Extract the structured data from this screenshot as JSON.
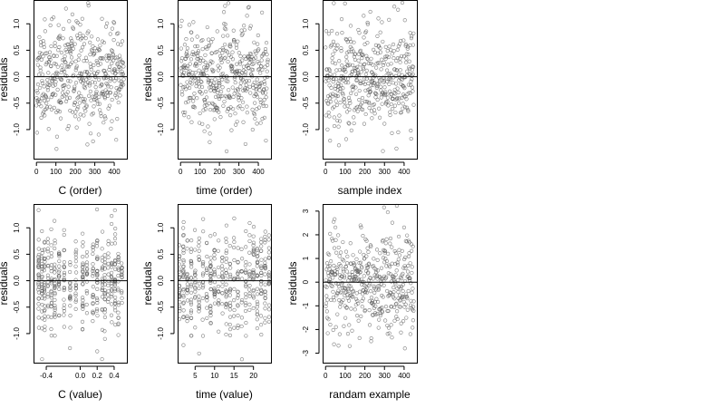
{
  "chart_data": [
    {
      "type": "scatter",
      "xlabel": "C (order)",
      "ylabel": "residuals",
      "xlim": [
        -15,
        465
      ],
      "ylim": [
        -1.55,
        1.45
      ],
      "xticks": [
        0,
        100,
        200,
        300,
        400
      ],
      "xtick_labels": [
        "0",
        "100",
        "200",
        "300",
        "400"
      ],
      "yticks": [
        -1.0,
        -0.5,
        0.0,
        0.5,
        1.0
      ],
      "ytick_labels": [
        "-1.0",
        "-0.5",
        "0.0",
        "0.5",
        "1.0"
      ],
      "hline": 0,
      "pattern": "order",
      "n": 450,
      "sd": 0.48,
      "seed": 11
    },
    {
      "type": "scatter",
      "xlabel": "time (order)",
      "ylabel": "residuals",
      "xlim": [
        -15,
        465
      ],
      "ylim": [
        -1.55,
        1.45
      ],
      "xticks": [
        0,
        100,
        200,
        300,
        400
      ],
      "xtick_labels": [
        "0",
        "100",
        "200",
        "300",
        "400"
      ],
      "yticks": [
        -1.0,
        -0.5,
        0.0,
        0.5,
        1.0
      ],
      "ytick_labels": [
        "-1.0",
        "-0.5",
        "0.0",
        "0.5",
        "1.0"
      ],
      "hline": 0,
      "pattern": "order",
      "n": 450,
      "sd": 0.48,
      "seed": 23
    },
    {
      "type": "scatter",
      "xlabel": "sample index",
      "ylabel": "residuals",
      "xlim": [
        -15,
        465
      ],
      "ylim": [
        -1.55,
        1.45
      ],
      "xticks": [
        0,
        100,
        200,
        300,
        400
      ],
      "xtick_labels": [
        "0",
        "100",
        "200",
        "300",
        "400"
      ],
      "yticks": [
        -1.0,
        -0.5,
        0.0,
        0.5,
        1.0
      ],
      "ytick_labels": [
        "-1.0",
        "-0.5",
        "0.0",
        "0.5",
        "1.0"
      ],
      "hline": 0,
      "pattern": "order",
      "n": 450,
      "sd": 0.48,
      "seed": 37
    },
    {
      "type": "scatter",
      "xlabel": "C (value)",
      "ylabel": "residuals",
      "xlim": [
        -0.55,
        0.55
      ],
      "ylim": [
        -1.55,
        1.45
      ],
      "xticks": [
        -0.4,
        0.0,
        0.2,
        0.4
      ],
      "xtick_labels": [
        "-0.4",
        "0.0",
        "0.2",
        "0.4"
      ],
      "yticks": [
        -1.0,
        -0.5,
        0.0,
        0.5,
        1.0
      ],
      "ytick_labels": [
        "-1.0",
        "-0.5",
        "0.0",
        "0.5",
        "1.0"
      ],
      "hline": 0,
      "pattern": "clustered",
      "clusters": [
        -0.49,
        -0.45,
        -0.42,
        -0.38,
        -0.34,
        -0.3,
        -0.25,
        -0.19,
        -0.12,
        -0.05,
        0.03,
        0.08,
        0.15,
        0.2,
        0.26,
        0.29,
        0.33,
        0.37,
        0.41,
        0.45,
        0.49
      ],
      "n": 450,
      "sd": 0.48,
      "seed": 41
    },
    {
      "type": "scatter",
      "xlabel": "time (value)",
      "ylabel": "residuals",
      "xlim": [
        0.5,
        24.5
      ],
      "ylim": [
        -1.55,
        1.45
      ],
      "xticks": [
        5,
        10,
        15,
        20
      ],
      "xtick_labels": [
        "5",
        "10",
        "15",
        "20"
      ],
      "yticks": [
        -1.0,
        -0.5,
        0.0,
        0.5,
        1.0
      ],
      "ytick_labels": [
        "-1.0",
        "-0.5",
        "0.0",
        "0.5",
        "1.0"
      ],
      "hline": 0,
      "pattern": "clustered",
      "clusters": [
        1,
        2,
        3,
        4,
        5,
        6,
        7,
        8,
        9,
        10,
        11,
        12,
        13,
        14,
        15,
        16,
        17,
        18,
        19,
        20,
        21,
        22,
        23,
        24
      ],
      "n": 450,
      "sd": 0.48,
      "seed": 53
    },
    {
      "type": "scatter",
      "xlabel": "randam example",
      "ylabel": "residuals",
      "xlim": [
        -15,
        465
      ],
      "ylim": [
        -3.4,
        3.3
      ],
      "xticks": [
        0,
        100,
        200,
        300,
        400
      ],
      "xtick_labels": [
        "0",
        "100",
        "200",
        "300",
        "400"
      ],
      "yticks": [
        -3,
        -2,
        -1,
        0,
        1,
        2,
        3
      ],
      "ytick_labels": [
        "-3",
        "-2",
        "-1",
        "0",
        "1",
        "2",
        "3"
      ],
      "hline": 0,
      "pattern": "order",
      "n": 450,
      "sd": 1.0,
      "seed": 67
    }
  ]
}
